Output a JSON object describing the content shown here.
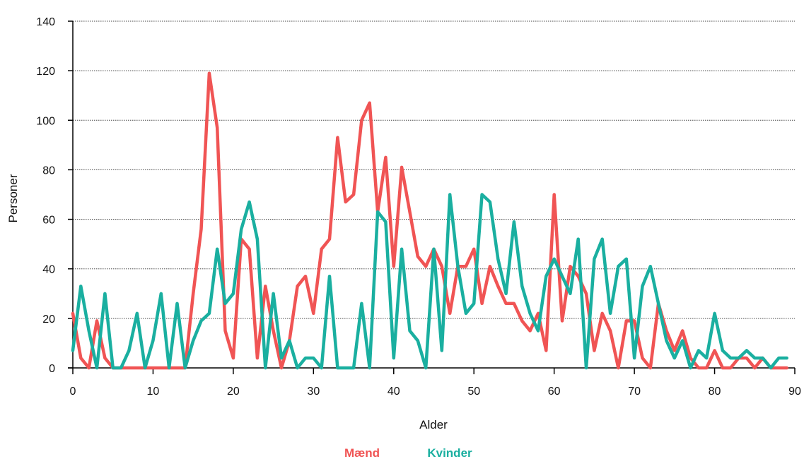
{
  "chart_data": {
    "type": "line",
    "xlabel": "Alder",
    "ylabel": "Personer",
    "xlim": [
      0,
      90
    ],
    "ylim": [
      0,
      140
    ],
    "x_ticks": [
      0,
      10,
      20,
      30,
      40,
      50,
      60,
      70,
      80,
      90
    ],
    "y_ticks": [
      0,
      20,
      40,
      60,
      80,
      100,
      120,
      140
    ],
    "grid": "horizontal dotted",
    "legend_position": "bottom-center",
    "x": [
      0,
      1,
      2,
      3,
      4,
      5,
      6,
      7,
      8,
      9,
      10,
      11,
      12,
      13,
      14,
      15,
      16,
      17,
      18,
      19,
      20,
      21,
      22,
      23,
      24,
      25,
      26,
      27,
      28,
      29,
      30,
      31,
      32,
      33,
      34,
      35,
      36,
      37,
      38,
      39,
      40,
      41,
      42,
      43,
      44,
      45,
      46,
      47,
      48,
      49,
      50,
      51,
      52,
      53,
      54,
      55,
      56,
      57,
      58,
      59,
      60,
      61,
      62,
      63,
      64,
      65,
      66,
      67,
      68,
      69,
      70,
      71,
      72,
      73,
      74,
      75,
      76,
      77,
      78,
      79,
      80,
      81,
      82,
      83,
      84,
      85,
      86,
      87,
      88,
      89
    ],
    "series": [
      {
        "name": "Mænd",
        "color": "#f05454",
        "values": [
          22,
          4,
          0,
          19,
          4,
          0,
          0,
          0,
          0,
          0,
          0,
          0,
          0,
          0,
          0,
          30,
          56,
          119,
          97,
          15,
          4,
          52,
          48,
          4,
          33,
          15,
          0,
          11,
          33,
          37,
          22,
          48,
          52,
          93,
          67,
          70,
          100,
          107,
          63,
          85,
          41,
          81,
          63,
          45,
          41,
          48,
          41,
          22,
          41,
          41,
          48,
          26,
          41,
          33,
          26,
          26,
          19,
          15,
          22,
          7,
          70,
          19,
          41,
          37,
          30,
          7,
          22,
          15,
          0,
          19,
          19,
          4,
          0,
          26,
          15,
          7,
          15,
          4,
          0,
          0,
          7,
          0,
          0,
          4,
          4,
          0,
          4,
          0,
          0,
          0
        ]
      },
      {
        "name": "Kvinder",
        "color": "#1aafa0",
        "values": [
          7,
          33,
          15,
          0,
          30,
          0,
          0,
          7,
          22,
          0,
          11,
          30,
          0,
          26,
          0,
          11,
          19,
          22,
          48,
          26,
          30,
          56,
          67,
          52,
          0,
          30,
          4,
          11,
          0,
          4,
          4,
          0,
          37,
          0,
          0,
          0,
          26,
          0,
          63,
          59,
          4,
          48,
          15,
          11,
          0,
          48,
          7,
          70,
          41,
          22,
          26,
          70,
          67,
          44,
          30,
          59,
          33,
          22,
          15,
          37,
          44,
          37,
          30,
          52,
          0,
          44,
          52,
          22,
          41,
          44,
          4,
          33,
          41,
          26,
          11,
          4,
          11,
          0,
          7,
          4,
          22,
          7,
          4,
          4,
          7,
          4,
          4,
          0,
          4,
          4
        ]
      }
    ]
  }
}
